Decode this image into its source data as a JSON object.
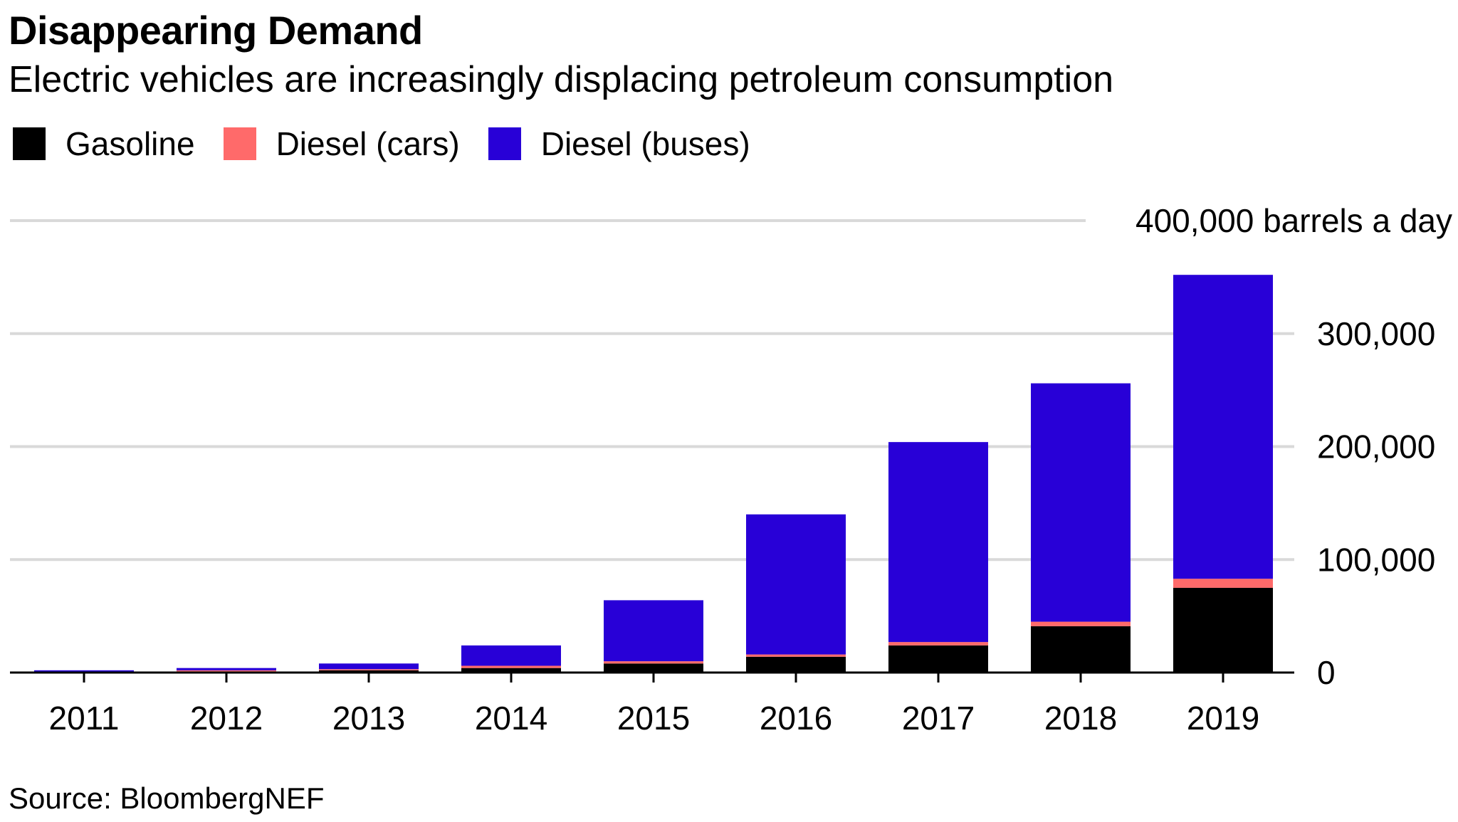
{
  "title": "Disappearing Demand",
  "subtitle": "Electric vehicles are increasingly displacing petroleum consumption",
  "source": "Source: BloombergNEF",
  "colors": {
    "gasoline": "#000000",
    "diesel_cars": "#ff6a6a",
    "diesel_buses": "#2800d7",
    "grid": "#d9d9d9",
    "axis": "#000000"
  },
  "chart_data": {
    "type": "bar",
    "stacked": true,
    "categories": [
      "2011",
      "2012",
      "2013",
      "2014",
      "2015",
      "2016",
      "2017",
      "2018",
      "2019"
    ],
    "series": [
      {
        "name": "Gasoline",
        "color_key": "gasoline",
        "values": [
          500,
          1000,
          2000,
          4000,
          8000,
          14000,
          24000,
          41000,
          75000
        ]
      },
      {
        "name": "Diesel (cars)",
        "color_key": "diesel_cars",
        "values": [
          300,
          1000,
          1000,
          2000,
          2000,
          2000,
          3000,
          4000,
          8000
        ]
      },
      {
        "name": "Diesel (buses)",
        "color_key": "diesel_buses",
        "values": [
          1200,
          2000,
          5000,
          18000,
          54000,
          124000,
          177000,
          211000,
          269000
        ]
      }
    ],
    "ylim": [
      0,
      400000
    ],
    "yticks": [
      {
        "value": 0,
        "label": "0"
      },
      {
        "value": 100000,
        "label": "100,000"
      },
      {
        "value": 200000,
        "label": "200,000"
      },
      {
        "value": 300000,
        "label": "300,000"
      },
      {
        "value": 400000,
        "label": "400,000 barrels a day"
      }
    ],
    "xlabel": "",
    "ylabel": "",
    "grid": true,
    "legend": "top-left"
  }
}
